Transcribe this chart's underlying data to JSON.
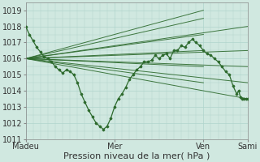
{
  "bg_color": "#d0e8e0",
  "grid_color": "#b0d4cc",
  "line_color": "#2d6a2d",
  "xlim": [
    0,
    120
  ],
  "ylim": [
    1011,
    1019.5
  ],
  "yticks": [
    1011,
    1012,
    1013,
    1014,
    1015,
    1016,
    1017,
    1018,
    1019
  ],
  "xtick_labels": [
    "Madeu",
    "Mer",
    "Ven",
    "Sami"
  ],
  "xtick_positions": [
    0,
    48,
    96,
    120
  ],
  "xlabel": "Pression niveau de la mer( hPa )",
  "xlabel_fontsize": 8,
  "ytick_fontsize": 7,
  "xtick_fontsize": 7,
  "forecast_origin_x": 0,
  "forecast_origin_y": 1016.0,
  "forecast_lines": [
    [
      120,
      1018.0
    ],
    [
      120,
      1016.5
    ],
    [
      120,
      1015.5
    ],
    [
      120,
      1014.5
    ],
    [
      120,
      1013.5
    ],
    [
      96,
      1019.0
    ],
    [
      96,
      1018.5
    ],
    [
      96,
      1017.5
    ],
    [
      96,
      1016.5
    ],
    [
      96,
      1015.5
    ],
    [
      96,
      1014.5
    ]
  ],
  "main_x": [
    0,
    2,
    4,
    6,
    8,
    10,
    12,
    14,
    16,
    18,
    20,
    22,
    24,
    26,
    28,
    30,
    32,
    34,
    36,
    38,
    40,
    42,
    44,
    46,
    48,
    50,
    52,
    54,
    56,
    58,
    60,
    62,
    64,
    66,
    68,
    70,
    72,
    74,
    76,
    78,
    80,
    82,
    84,
    86,
    88,
    90,
    92,
    94,
    96,
    98,
    100,
    102,
    104,
    106,
    108,
    110,
    112,
    114,
    115,
    116,
    117,
    118,
    119,
    120
  ],
  "main_y": [
    1018.0,
    1017.5,
    1017.1,
    1016.7,
    1016.4,
    1016.1,
    1016.0,
    1015.8,
    1015.5,
    1015.3,
    1015.1,
    1015.3,
    1015.2,
    1015.0,
    1014.5,
    1013.8,
    1013.3,
    1012.8,
    1012.4,
    1012.0,
    1011.8,
    1011.6,
    1011.8,
    1012.3,
    1013.0,
    1013.5,
    1013.8,
    1014.2,
    1014.7,
    1015.0,
    1015.3,
    1015.5,
    1015.8,
    1015.8,
    1015.9,
    1016.2,
    1016.0,
    1016.2,
    1016.3,
    1016.0,
    1016.5,
    1016.5,
    1016.8,
    1016.7,
    1017.0,
    1017.2,
    1017.0,
    1016.8,
    1016.5,
    1016.3,
    1016.2,
    1016.0,
    1015.8,
    1015.5,
    1015.2,
    1015.0,
    1014.3,
    1013.8,
    1014.0,
    1013.6,
    1013.5,
    1013.5,
    1013.5,
    1013.5
  ]
}
